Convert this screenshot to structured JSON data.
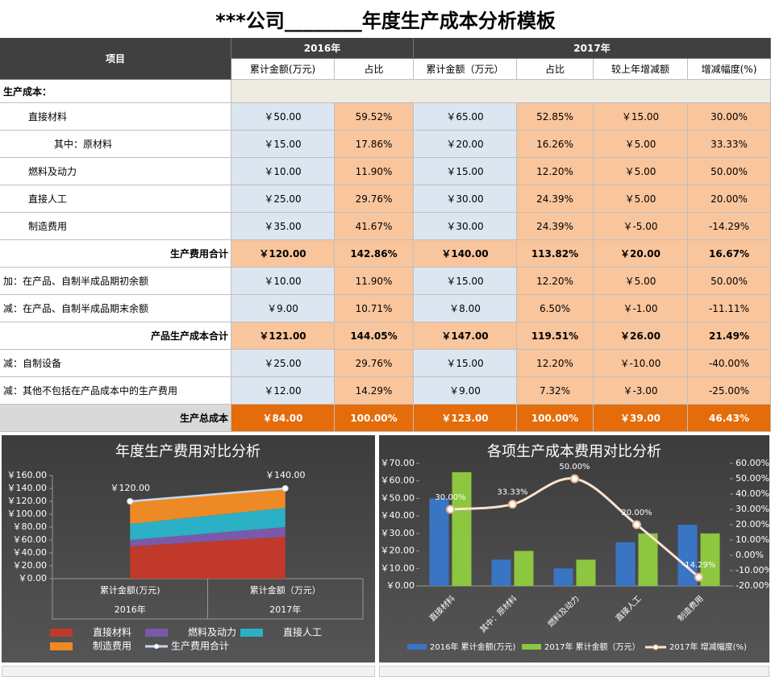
{
  "title": "***公司________年度生产成本分析模板",
  "table": {
    "header": {
      "item": "项目",
      "years": [
        "2016年",
        "2017年"
      ],
      "columns": [
        "累计金额(万元)",
        "占比",
        "累计金额（万元）",
        "占比",
        "较上年增减额",
        "增减幅度(%)"
      ]
    },
    "rows": [
      {
        "label": "生产成本：",
        "cells": []
      },
      {
        "label": "直接材料",
        "cells": [
          "￥50.00",
          "59.52%",
          "￥65.00",
          "52.85%",
          "￥15.00",
          "30.00%"
        ]
      },
      {
        "label": "其中：原材料",
        "cells": [
          "￥15.00",
          "17.86%",
          "￥20.00",
          "16.26%",
          "￥5.00",
          "33.33%"
        ]
      },
      {
        "label": "燃料及动力",
        "cells": [
          "￥10.00",
          "11.90%",
          "￥15.00",
          "12.20%",
          "￥5.00",
          "50.00%"
        ]
      },
      {
        "label": "直接人工",
        "cells": [
          "￥25.00",
          "29.76%",
          "￥30.00",
          "24.39%",
          "￥5.00",
          "20.00%"
        ]
      },
      {
        "label": "制造费用",
        "cells": [
          "￥35.00",
          "41.67%",
          "￥30.00",
          "24.39%",
          "￥-5.00",
          "-14.29%"
        ]
      },
      {
        "label": "生产费用合计",
        "cells": [
          "￥120.00",
          "142.86%",
          "￥140.00",
          "113.82%",
          "￥20.00",
          "16.67%"
        ]
      },
      {
        "label": "加：在产品、自制半成品期初余额",
        "cells": [
          "￥10.00",
          "11.90%",
          "￥15.00",
          "12.20%",
          "￥5.00",
          "50.00%"
        ]
      },
      {
        "label": "减：在产品、自制半成品期末余额",
        "cells": [
          "￥9.00",
          "10.71%",
          "￥8.00",
          "6.50%",
          "￥-1.00",
          "-11.11%"
        ]
      },
      {
        "label": "产品生产成本合计",
        "cells": [
          "￥121.00",
          "144.05%",
          "￥147.00",
          "119.51%",
          "￥26.00",
          "21.49%"
        ]
      },
      {
        "label": "减：自制设备",
        "cells": [
          "￥25.00",
          "29.76%",
          "￥15.00",
          "12.20%",
          "￥-10.00",
          "-40.00%"
        ]
      },
      {
        "label": "减：其他不包括在产品成本中的生产费用",
        "cells": [
          "￥12.00",
          "14.29%",
          "￥9.00",
          "7.32%",
          "￥-3.00",
          "-25.00%"
        ]
      },
      {
        "label": "生产总成本",
        "cells": [
          "￥84.00",
          "100.00%",
          "￥123.00",
          "100.00%",
          "￥39.00",
          "46.43%"
        ]
      }
    ]
  },
  "chart_data": [
    {
      "type": "area",
      "stacked": true,
      "title": "年度生产费用对比分析",
      "categories": [
        "累计金额(万元)",
        "累计金额（万元）"
      ],
      "category_groups": [
        "2016年",
        "2017年"
      ],
      "series": [
        {
          "name": "直接材料",
          "color": "#c0392b",
          "values": [
            50,
            65
          ]
        },
        {
          "name": "燃料及动力",
          "color": "#7b59a8",
          "values": [
            10,
            15
          ]
        },
        {
          "name": "直接人工",
          "color": "#2bb0c6",
          "values": [
            25,
            30
          ]
        },
        {
          "name": "制造费用",
          "color": "#ee8a25",
          "values": [
            35,
            30
          ]
        },
        {
          "name": "生产费用合计",
          "type": "line",
          "color": "#c6d9f0",
          "values": [
            120,
            140
          ],
          "value_labels": [
            "￥120.00",
            "￥140.00"
          ]
        }
      ],
      "ylim": [
        0,
        160
      ],
      "yticks": [
        {
          "value": 0,
          "label": "￥0.00"
        },
        {
          "value": 20,
          "label": "￥20.00"
        },
        {
          "value": 40,
          "label": "￥40.00"
        },
        {
          "value": 60,
          "label": "￥60.00"
        },
        {
          "value": 80,
          "label": "￥80.00"
        },
        {
          "value": 100,
          "label": "￥100.00"
        },
        {
          "value": 120,
          "label": "￥120.00"
        },
        {
          "value": 140,
          "label": "￥140.00"
        },
        {
          "value": 160,
          "label": "￥160.00"
        }
      ]
    },
    {
      "type": "bar",
      "title": "各项生产成本费用对比分析",
      "categories": [
        "直接材料",
        "其中：原材料",
        "燃料及动力",
        "直接人工",
        "制造费用"
      ],
      "series": [
        {
          "name": "2016年 累计金额(万元)",
          "color": "#3a75c4",
          "values": [
            50,
            15,
            10,
            25,
            35
          ]
        },
        {
          "name": "2017年 累计金额（万元）",
          "color": "#8dc63f",
          "values": [
            65,
            20,
            15,
            30,
            30
          ]
        },
        {
          "name": "2017年 增减幅度(%)",
          "type": "line",
          "axis": "y2",
          "color": "#fbe3cf",
          "values": [
            30,
            33.33,
            50,
            20,
            -14.29
          ],
          "value_labels": [
            "30.00%",
            "33.33%",
            "50.00%",
            "20.00%",
            "-14.29%"
          ]
        }
      ],
      "ylim": [
        0,
        70
      ],
      "yticks": [
        {
          "value": 0,
          "label": "￥0.00"
        },
        {
          "value": 10,
          "label": "￥10.00"
        },
        {
          "value": 20,
          "label": "￥20.00"
        },
        {
          "value": 30,
          "label": "￥30.00"
        },
        {
          "value": 40,
          "label": "￥40.00"
        },
        {
          "value": 50,
          "label": "￥50.00"
        },
        {
          "value": 60,
          "label": "￥60.00"
        },
        {
          "value": 70,
          "label": "￥70.00"
        }
      ],
      "y2lim": [
        -20,
        60
      ],
      "y2ticks": [
        {
          "value": -20,
          "label": "-20.00%"
        },
        {
          "value": -10,
          "label": "-10.00%"
        },
        {
          "value": 0,
          "label": "0.00%"
        },
        {
          "value": 10,
          "label": "10.00%"
        },
        {
          "value": 20,
          "label": "20.00%"
        },
        {
          "value": 30,
          "label": "30.00%"
        },
        {
          "value": 40,
          "label": "40.00%"
        },
        {
          "value": 50,
          "label": "50.00%"
        },
        {
          "value": 60,
          "label": "60.00%"
        }
      ]
    }
  ]
}
